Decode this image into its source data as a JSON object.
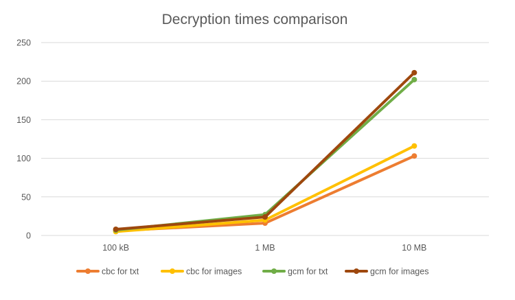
{
  "chart_data": {
    "type": "line",
    "title": "Decryption times comparison",
    "categories": [
      "100 kB",
      "1 MB",
      "10 MB"
    ],
    "ylim": [
      0,
      250
    ],
    "yticks": [
      0,
      50,
      100,
      150,
      200,
      250
    ],
    "grid": true,
    "legend_position": "bottom",
    "series": [
      {
        "name": "cbc for txt",
        "values": [
          6,
          16,
          103
        ],
        "color": "#ED7D31"
      },
      {
        "name": "cbc for images",
        "values": [
          5,
          20,
          116
        ],
        "color": "#FFC000"
      },
      {
        "name": "gcm for txt",
        "values": [
          7,
          27,
          202
        ],
        "color": "#70AD47"
      },
      {
        "name": "gcm for images",
        "values": [
          8,
          24,
          211
        ],
        "color": "#9E480E"
      }
    ]
  }
}
